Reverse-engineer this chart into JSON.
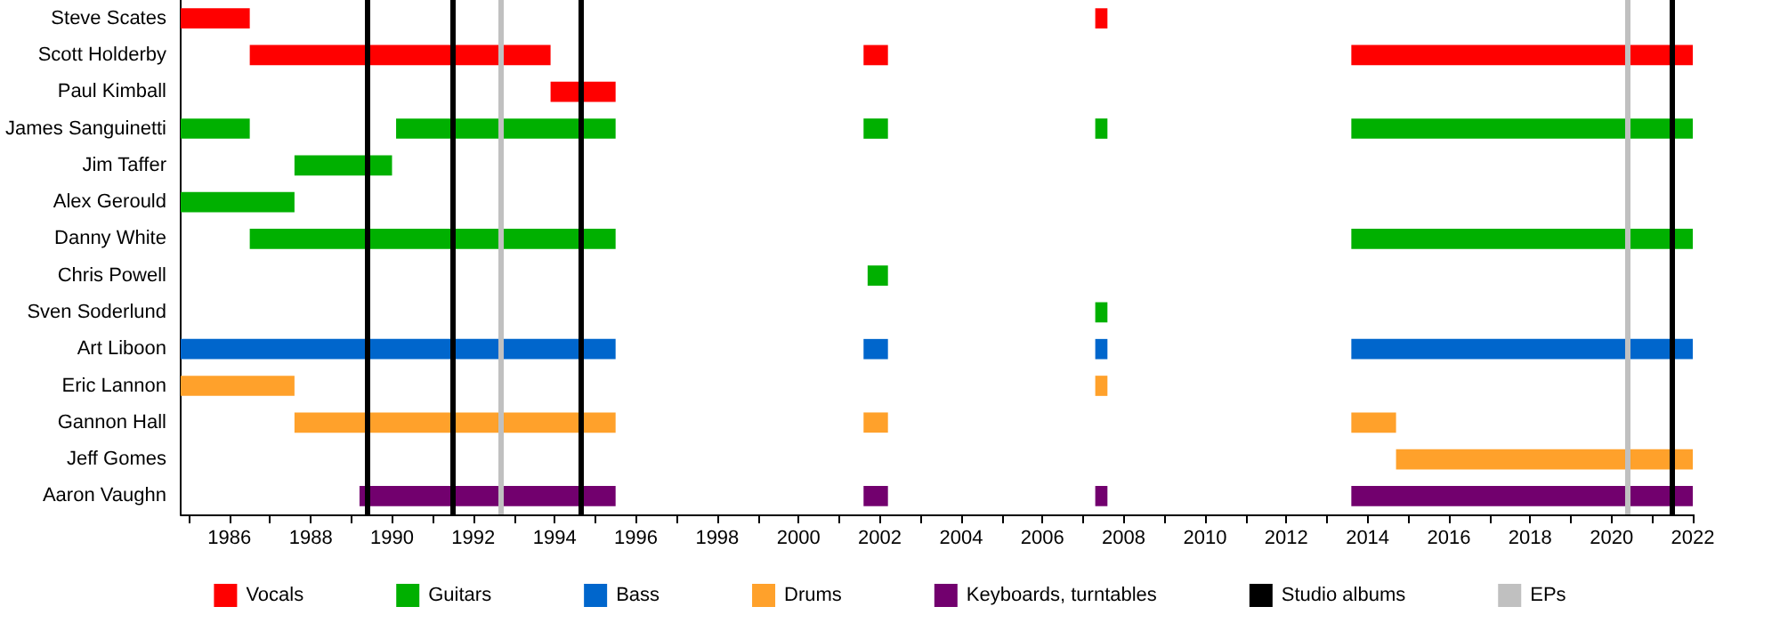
{
  "chart_data": {
    "type": "bar",
    "orientation": "horizontal",
    "categories": [
      "Steve Scates",
      "Scott Holderby",
      "Paul Kimball",
      "James Sanguinetti",
      "Jim Taffer",
      "Alex Gerould",
      "Danny White",
      "Chris Powell",
      "Sven Soderlund",
      "Art Liboon",
      "Eric Lannon",
      "Gannon Hall",
      "Jeff Gomes",
      "Aaron Vaughn"
    ],
    "series": [
      {
        "name": "Vocals",
        "color": "#ff0000",
        "base": [
          1984.8,
          1986.5,
          1993.9,
          null,
          null,
          null,
          null,
          null,
          null,
          null,
          null,
          null,
          null,
          null
        ],
        "values": [
          1.7,
          7.4,
          1.6,
          null,
          null,
          null,
          null,
          null,
          null,
          null,
          null,
          null,
          null,
          null
        ]
      },
      {
        "color": "#ff0000",
        "base": [
          2007.3,
          2001.6,
          null,
          null,
          null,
          null,
          null,
          null,
          null,
          null,
          null,
          null,
          null,
          null
        ],
        "values": [
          0.3,
          0.6,
          null,
          null,
          null,
          null,
          null,
          null,
          null,
          null,
          null,
          null,
          null,
          null
        ]
      },
      {
        "color": "#ff0000",
        "base": [
          null,
          2013.6,
          null,
          null,
          null,
          null,
          null,
          null,
          null,
          null,
          null,
          null,
          null,
          null
        ],
        "values": [
          null,
          8.4,
          null,
          null,
          null,
          null,
          null,
          null,
          null,
          null,
          null,
          null,
          null,
          null
        ]
      },
      {
        "name": "Guitars",
        "color": "#00b000",
        "base": [
          null,
          null,
          null,
          1984.8,
          1987.6,
          1984.8,
          1986.5,
          2001.7,
          2007.3,
          null,
          null,
          null,
          null,
          null
        ],
        "values": [
          null,
          null,
          null,
          1.7,
          2.4,
          2.8,
          9.0,
          0.5,
          0.3,
          null,
          null,
          null,
          null,
          null
        ]
      },
      {
        "color": "#00b000",
        "base": [
          null,
          null,
          null,
          1990.1,
          null,
          null,
          2013.6,
          null,
          null,
          null,
          null,
          null,
          null,
          null
        ],
        "values": [
          null,
          null,
          null,
          5.4,
          null,
          null,
          8.4,
          null,
          null,
          null,
          null,
          null,
          null,
          null
        ]
      },
      {
        "color": "#00b000",
        "base": [
          null,
          null,
          null,
          2001.6,
          null,
          null,
          null,
          null,
          null,
          null,
          null,
          null,
          null,
          null
        ],
        "values": [
          null,
          null,
          null,
          0.6,
          null,
          null,
          null,
          null,
          null,
          null,
          null,
          null,
          null,
          null
        ]
      },
      {
        "color": "#00b000",
        "base": [
          null,
          null,
          null,
          2007.3,
          null,
          null,
          null,
          null,
          null,
          null,
          null,
          null,
          null,
          null
        ],
        "values": [
          null,
          null,
          null,
          0.3,
          null,
          null,
          null,
          null,
          null,
          null,
          null,
          null,
          null,
          null
        ]
      },
      {
        "color": "#00b000",
        "base": [
          null,
          null,
          null,
          2013.6,
          null,
          null,
          null,
          null,
          null,
          null,
          null,
          null,
          null,
          null
        ],
        "values": [
          null,
          null,
          null,
          8.4,
          null,
          null,
          null,
          null,
          null,
          null,
          null,
          null,
          null,
          null
        ]
      },
      {
        "name": "Bass",
        "color": "#0066cc",
        "base": [
          null,
          null,
          null,
          null,
          null,
          null,
          null,
          null,
          null,
          1984.8,
          null,
          null,
          null,
          null
        ],
        "values": [
          null,
          null,
          null,
          null,
          null,
          null,
          null,
          null,
          null,
          10.7,
          null,
          null,
          null,
          null
        ]
      },
      {
        "color": "#0066cc",
        "base": [
          null,
          null,
          null,
          null,
          null,
          null,
          null,
          null,
          null,
          2001.6,
          null,
          null,
          null,
          null
        ],
        "values": [
          null,
          null,
          null,
          null,
          null,
          null,
          null,
          null,
          null,
          0.6,
          null,
          null,
          null,
          null
        ]
      },
      {
        "color": "#0066cc",
        "base": [
          null,
          null,
          null,
          null,
          null,
          null,
          null,
          null,
          null,
          2007.3,
          null,
          null,
          null,
          null
        ],
        "values": [
          null,
          null,
          null,
          null,
          null,
          null,
          null,
          null,
          null,
          0.3,
          null,
          null,
          null,
          null
        ]
      },
      {
        "color": "#0066cc",
        "base": [
          null,
          null,
          null,
          null,
          null,
          null,
          null,
          null,
          null,
          2013.6,
          null,
          null,
          null,
          null
        ],
        "values": [
          null,
          null,
          null,
          null,
          null,
          null,
          null,
          null,
          null,
          8.4,
          null,
          null,
          null,
          null
        ]
      },
      {
        "name": "Drums",
        "color": "#ffa12b",
        "base": [
          null,
          null,
          null,
          null,
          null,
          null,
          null,
          null,
          null,
          null,
          1984.8,
          1987.6,
          2014.7,
          null
        ],
        "values": [
          null,
          null,
          null,
          null,
          null,
          null,
          null,
          null,
          null,
          null,
          2.8,
          7.9,
          7.3,
          null
        ]
      },
      {
        "color": "#ffa12b",
        "base": [
          null,
          null,
          null,
          null,
          null,
          null,
          null,
          null,
          null,
          null,
          2007.3,
          2001.6,
          null,
          null
        ],
        "values": [
          null,
          null,
          null,
          null,
          null,
          null,
          null,
          null,
          null,
          null,
          0.3,
          0.6,
          null,
          null
        ]
      },
      {
        "color": "#ffa12b",
        "base": [
          null,
          null,
          null,
          null,
          null,
          null,
          null,
          null,
          null,
          null,
          null,
          2013.6,
          null,
          null
        ],
        "values": [
          null,
          null,
          null,
          null,
          null,
          null,
          null,
          null,
          null,
          null,
          null,
          1.1,
          null,
          null
        ]
      },
      {
        "name": "Keyboards, turntables",
        "color": "#72006e",
        "base": [
          null,
          null,
          null,
          null,
          null,
          null,
          null,
          null,
          null,
          null,
          null,
          null,
          null,
          1989.2
        ],
        "values": [
          null,
          null,
          null,
          null,
          null,
          null,
          null,
          null,
          null,
          null,
          null,
          null,
          null,
          6.3
        ]
      },
      {
        "color": "#72006e",
        "base": [
          null,
          null,
          null,
          null,
          null,
          null,
          null,
          null,
          null,
          null,
          null,
          null,
          null,
          2001.6
        ],
        "values": [
          null,
          null,
          null,
          null,
          null,
          null,
          null,
          null,
          null,
          null,
          null,
          null,
          null,
          0.6
        ]
      },
      {
        "color": "#72006e",
        "base": [
          null,
          null,
          null,
          null,
          null,
          null,
          null,
          null,
          null,
          null,
          null,
          null,
          null,
          2007.3
        ],
        "values": [
          null,
          null,
          null,
          null,
          null,
          null,
          null,
          null,
          null,
          null,
          null,
          null,
          null,
          0.3
        ]
      },
      {
        "color": "#72006e",
        "base": [
          null,
          null,
          null,
          null,
          null,
          null,
          null,
          null,
          null,
          null,
          null,
          null,
          null,
          2013.6
        ],
        "values": [
          null,
          null,
          null,
          null,
          null,
          null,
          null,
          null,
          null,
          null,
          null,
          null,
          null,
          8.4
        ]
      }
    ],
    "ref_lines": [
      {
        "axis": "x",
        "value": 1989.4,
        "label": "Studio albums",
        "color": "#000000"
      },
      {
        "axis": "x",
        "value": 1991.5,
        "color": "#000000"
      },
      {
        "axis": "x",
        "value": 1994.65,
        "color": "#000000"
      },
      {
        "axis": "x",
        "value": 2021.5,
        "color": "#000000"
      },
      {
        "axis": "x",
        "value": 1992.65,
        "label": "EPs",
        "color": "#c0c0c0"
      },
      {
        "axis": "x",
        "value": 2020.4,
        "color": "#c0c0c0"
      }
    ],
    "xlim": [
      1984.8,
      2022
    ],
    "xticks": [
      {
        "value": 1985,
        "label": null
      },
      1986,
      {
        "value": 1987,
        "label": null
      },
      1988,
      {
        "value": 1989,
        "label": null
      },
      1990,
      {
        "value": 1991,
        "label": null
      },
      1992,
      {
        "value": 1993,
        "label": null
      },
      1994,
      {
        "value": 1995,
        "label": null
      },
      1996,
      {
        "value": 1997,
        "label": null
      },
      1998,
      {
        "value": 1999,
        "label": null
      },
      2000,
      {
        "value": 2001,
        "label": null
      },
      2002,
      {
        "value": 2003,
        "label": null
      },
      2004,
      {
        "value": 2005,
        "label": null
      },
      2006,
      {
        "value": 2007,
        "label": null
      },
      2008,
      {
        "value": 2009,
        "label": null
      },
      2010,
      {
        "value": 2011,
        "label": null
      },
      2012,
      {
        "value": 2013,
        "label": null
      },
      2014,
      {
        "value": 2015,
        "label": null
      },
      2016,
      {
        "value": 2017,
        "label": null
      },
      2018,
      {
        "value": 2019,
        "label": null
      },
      2020,
      {
        "value": 2021,
        "label": null
      },
      2022
    ],
    "grid": false,
    "legend": "bottom"
  }
}
